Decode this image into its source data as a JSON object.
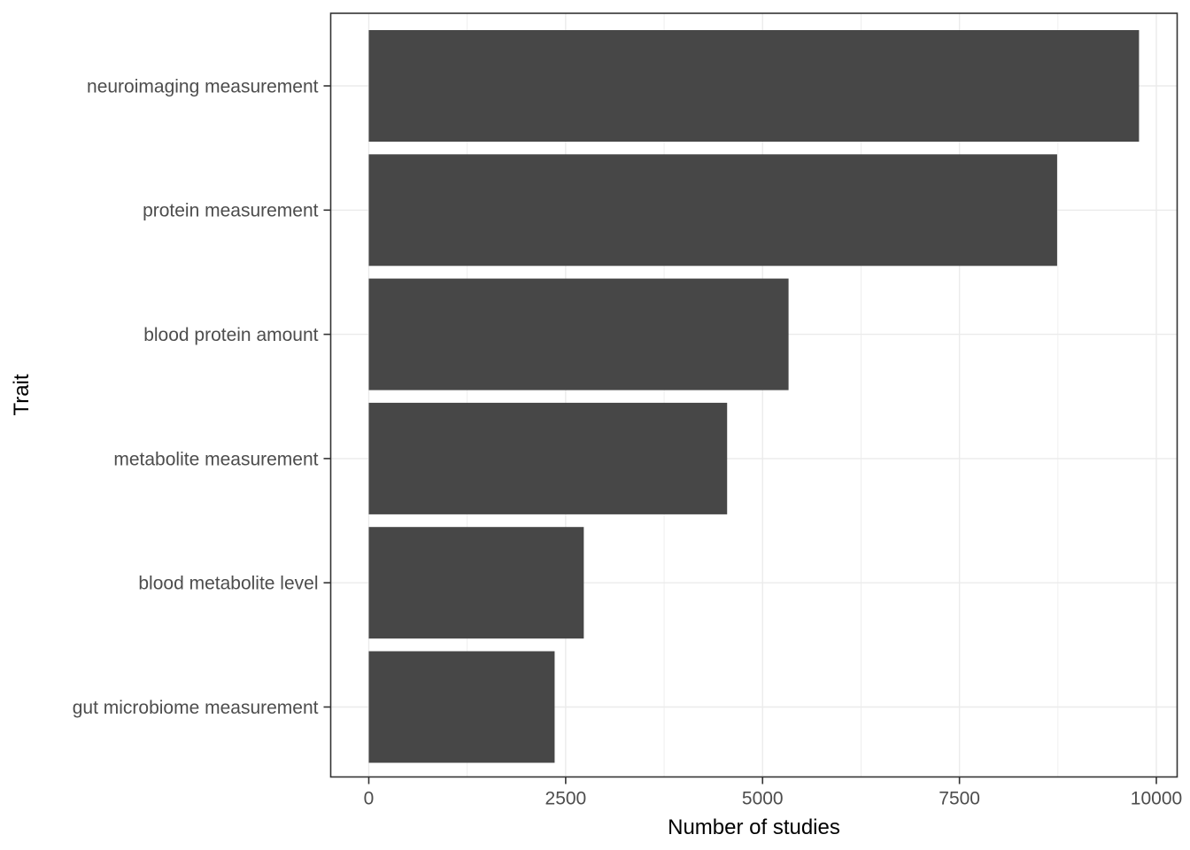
{
  "chart_data": {
    "type": "bar",
    "orientation": "horizontal",
    "title": "",
    "xlabel": "Number of studies",
    "ylabel": "Trait",
    "categories": [
      "neuroimaging measurement",
      "protein measurement",
      "blood protein amount",
      "metabolite measurement",
      "blood metabolite level",
      "gut microbiome measurement"
    ],
    "values": [
      9780,
      8740,
      5330,
      4550,
      2730,
      2360
    ],
    "xlim": [
      0,
      10000
    ],
    "x_ticks": [
      0,
      2500,
      5000,
      7500,
      10000
    ],
    "x_tick_labels": [
      "0",
      "2500",
      "5000",
      "7500",
      "10000"
    ],
    "grid": "major-and-minor-vertical, major-horizontal",
    "legend": "none",
    "colors": {
      "bar_fill": "#474747",
      "gridline": "#EBEBEB",
      "panel_border": "#333333",
      "axis_tick": "#333333",
      "axis_text": "#4D4D4D",
      "axis_title": "#000000",
      "background": "#FFFFFF"
    }
  }
}
